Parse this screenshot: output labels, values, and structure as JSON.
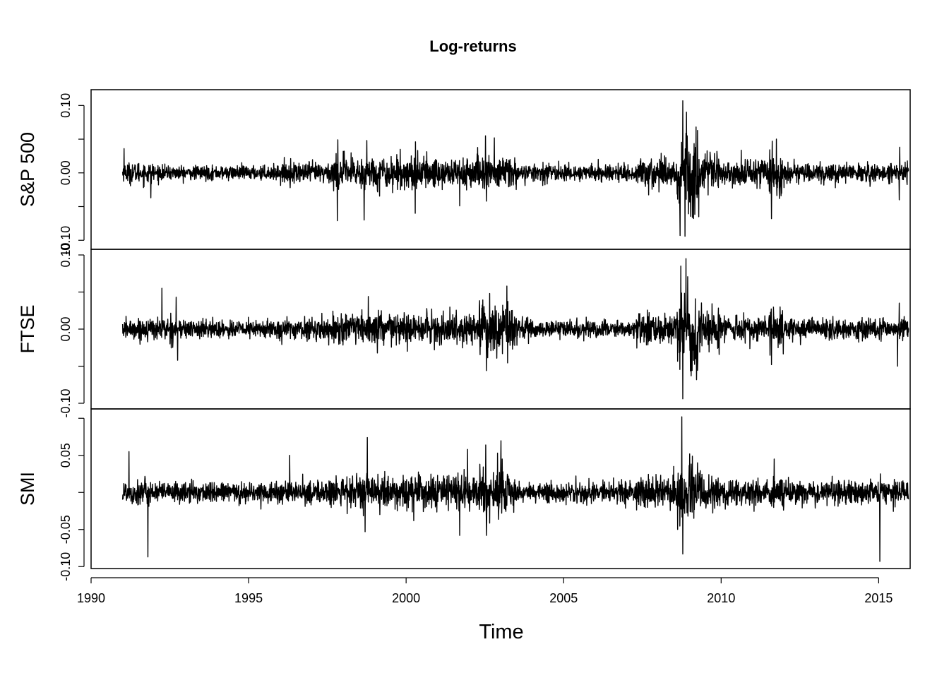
{
  "chart_data": {
    "type": "line",
    "title": "Log-returns",
    "xlabel": "Time",
    "xlim": [
      1990,
      2016
    ],
    "x_ticks": [
      1990,
      1995,
      2000,
      2005,
      2010,
      2015
    ],
    "x_tick_labels": [
      "1990",
      "1995",
      "2000",
      "2005",
      "2010",
      "2015"
    ],
    "series_start": 1991.0,
    "series_end": 2015.95,
    "grid": false,
    "legend": "none",
    "line_color": "#000000",
    "panels": [
      {
        "ylabel": "S&P 500",
        "ylim": [
          -0.105,
          0.115
        ],
        "y_ticks": [
          -0.1,
          -0.05,
          0.0,
          0.05,
          0.1
        ],
        "y_tick_labels": [
          "-0.10",
          "",
          "0.00",
          "",
          "0.10"
        ],
        "regimes": [
          {
            "start": 1991.0,
            "end": 1992.0,
            "sd": 0.009
          },
          {
            "start": 1992.0,
            "end": 1996.0,
            "sd": 0.006
          },
          {
            "start": 1996.0,
            "end": 1997.6,
            "sd": 0.009
          },
          {
            "start": 1997.6,
            "end": 2003.5,
            "sd": 0.014
          },
          {
            "start": 2003.5,
            "end": 2007.3,
            "sd": 0.007
          },
          {
            "start": 2007.3,
            "end": 2008.6,
            "sd": 0.014
          },
          {
            "start": 2008.6,
            "end": 2009.3,
            "sd": 0.035
          },
          {
            "start": 2009.3,
            "end": 2010.0,
            "sd": 0.017
          },
          {
            "start": 2010.0,
            "end": 2011.5,
            "sd": 0.011
          },
          {
            "start": 2011.5,
            "end": 2012.0,
            "sd": 0.018
          },
          {
            "start": 2012.0,
            "end": 2016.0,
            "sd": 0.008
          }
        ],
        "spikes": [
          {
            "x": 1991.05,
            "y": 0.036
          },
          {
            "x": 1991.9,
            "y": -0.037
          },
          {
            "x": 1997.82,
            "y": -0.071
          },
          {
            "x": 1997.83,
            "y": 0.049
          },
          {
            "x": 1998.67,
            "y": -0.07
          },
          {
            "x": 1998.75,
            "y": 0.048
          },
          {
            "x": 2000.29,
            "y": -0.06
          },
          {
            "x": 2000.3,
            "y": 0.046
          },
          {
            "x": 2001.7,
            "y": -0.049
          },
          {
            "x": 2002.52,
            "y": 0.055
          },
          {
            "x": 2002.55,
            "y": -0.042
          },
          {
            "x": 2002.8,
            "y": 0.052
          },
          {
            "x": 2008.7,
            "y": -0.093
          },
          {
            "x": 2008.78,
            "y": 0.107
          },
          {
            "x": 2008.85,
            "y": -0.094
          },
          {
            "x": 2008.9,
            "y": 0.09
          },
          {
            "x": 2009.2,
            "y": 0.068
          },
          {
            "x": 2011.6,
            "y": -0.068
          },
          {
            "x": 2011.62,
            "y": 0.047
          },
          {
            "x": 2015.65,
            "y": -0.04
          },
          {
            "x": 2015.67,
            "y": 0.038
          }
        ]
      },
      {
        "ylabel": "FTSE",
        "ylim": [
          -0.1,
          0.1
        ],
        "y_ticks": [
          -0.1,
          -0.05,
          0.0,
          0.05,
          0.1
        ],
        "y_tick_labels": [
          "-0.10",
          "",
          "0.00",
          "",
          "0.10"
        ],
        "regimes": [
          {
            "start": 1991.0,
            "end": 1992.0,
            "sd": 0.008
          },
          {
            "start": 1992.0,
            "end": 1993.0,
            "sd": 0.009
          },
          {
            "start": 1993.0,
            "end": 1996.0,
            "sd": 0.007
          },
          {
            "start": 1996.0,
            "end": 1997.6,
            "sd": 0.008
          },
          {
            "start": 1997.6,
            "end": 2002.3,
            "sd": 0.012
          },
          {
            "start": 2002.3,
            "end": 2003.5,
            "sd": 0.02
          },
          {
            "start": 2003.5,
            "end": 2007.3,
            "sd": 0.007
          },
          {
            "start": 2007.3,
            "end": 2008.6,
            "sd": 0.013
          },
          {
            "start": 2008.6,
            "end": 2009.3,
            "sd": 0.03
          },
          {
            "start": 2009.3,
            "end": 2010.0,
            "sd": 0.015
          },
          {
            "start": 2010.0,
            "end": 2011.5,
            "sd": 0.01
          },
          {
            "start": 2011.5,
            "end": 2012.0,
            "sd": 0.016
          },
          {
            "start": 2012.0,
            "end": 2016.0,
            "sd": 0.008
          }
        ],
        "spikes": [
          {
            "x": 1992.25,
            "y": 0.055
          },
          {
            "x": 1992.7,
            "y": 0.043
          },
          {
            "x": 1992.75,
            "y": -0.042
          },
          {
            "x": 1998.8,
            "y": 0.044
          },
          {
            "x": 2002.55,
            "y": -0.056
          },
          {
            "x": 2002.65,
            "y": 0.048
          },
          {
            "x": 2003.2,
            "y": 0.058
          },
          {
            "x": 2008.72,
            "y": 0.085
          },
          {
            "x": 2008.78,
            "y": -0.094
          },
          {
            "x": 2008.88,
            "y": 0.095
          },
          {
            "x": 2009.05,
            "y": -0.063
          },
          {
            "x": 2011.6,
            "y": -0.048
          },
          {
            "x": 2015.6,
            "y": -0.05
          },
          {
            "x": 2015.65,
            "y": 0.035
          }
        ]
      },
      {
        "ylabel": "SMI",
        "ylim": [
          -0.095,
          0.105
        ],
        "y_ticks": [
          -0.1,
          -0.05,
          0.0,
          0.05,
          0.1
        ],
        "y_tick_labels": [
          "-0.10",
          "-0.05",
          "",
          "0.05",
          ""
        ],
        "regimes": [
          {
            "start": 1991.0,
            "end": 1992.0,
            "sd": 0.01
          },
          {
            "start": 1992.0,
            "end": 1996.0,
            "sd": 0.008
          },
          {
            "start": 1996.0,
            "end": 1997.6,
            "sd": 0.009
          },
          {
            "start": 1997.6,
            "end": 2002.3,
            "sd": 0.013
          },
          {
            "start": 2002.3,
            "end": 2003.5,
            "sd": 0.02
          },
          {
            "start": 2003.5,
            "end": 2007.3,
            "sd": 0.008
          },
          {
            "start": 2007.3,
            "end": 2008.6,
            "sd": 0.013
          },
          {
            "start": 2008.6,
            "end": 2009.3,
            "sd": 0.025
          },
          {
            "start": 2009.3,
            "end": 2010.0,
            "sd": 0.014
          },
          {
            "start": 2010.0,
            "end": 2011.5,
            "sd": 0.01
          },
          {
            "start": 2011.5,
            "end": 2012.0,
            "sd": 0.014
          },
          {
            "start": 2012.0,
            "end": 2016.0,
            "sd": 0.009
          }
        ],
        "spikes": [
          {
            "x": 1991.2,
            "y": 0.055
          },
          {
            "x": 1991.8,
            "y": -0.087
          },
          {
            "x": 1996.3,
            "y": 0.05
          },
          {
            "x": 1998.77,
            "y": 0.074
          },
          {
            "x": 1998.7,
            "y": -0.053
          },
          {
            "x": 2001.7,
            "y": -0.058
          },
          {
            "x": 2001.95,
            "y": 0.058
          },
          {
            "x": 2002.53,
            "y": 0.064
          },
          {
            "x": 2002.55,
            "y": -0.058
          },
          {
            "x": 2002.9,
            "y": 0.053
          },
          {
            "x": 2008.75,
            "y": 0.102
          },
          {
            "x": 2008.78,
            "y": -0.083
          },
          {
            "x": 2009.0,
            "y": 0.052
          },
          {
            "x": 2011.68,
            "y": 0.045
          },
          {
            "x": 2015.04,
            "y": -0.093
          },
          {
            "x": 2015.05,
            "y": 0.025
          }
        ]
      }
    ]
  }
}
